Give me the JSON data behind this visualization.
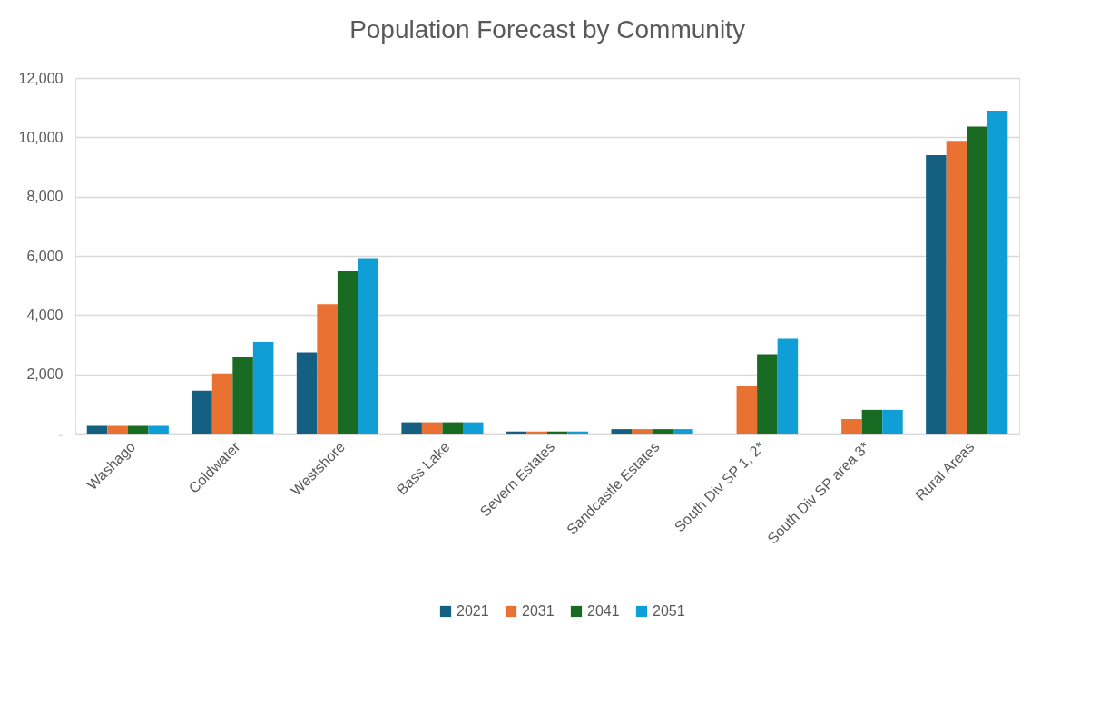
{
  "chart_data": {
    "type": "bar",
    "title": "Population Forecast by Community",
    "categories": [
      "Washago",
      "Coldwater",
      "Westshore",
      "Bass Lake",
      "Severn Estates",
      "Sandcastle Estates",
      "South Div SP 1, 2*",
      "South Div SP area 3*",
      "Rural Areas"
    ],
    "series": [
      {
        "name": "2021",
        "color": "#156082",
        "values": [
          260,
          1450,
          2740,
          380,
          70,
          150,
          null,
          null,
          9400
        ]
      },
      {
        "name": "2031",
        "color": "#e97132",
        "values": [
          260,
          2030,
          4370,
          380,
          70,
          150,
          1590,
          490,
          9880
        ]
      },
      {
        "name": "2041",
        "color": "#196b24",
        "values": [
          260,
          2570,
          5480,
          380,
          70,
          150,
          2680,
          800,
          10360
        ]
      },
      {
        "name": "2051",
        "color": "#0f9ed5",
        "values": [
          260,
          3090,
          5920,
          380,
          70,
          150,
          3200,
          800,
          10900
        ]
      }
    ],
    "ylim": [
      0,
      12000
    ],
    "yticks": [
      {
        "value": 0,
        "label": "-"
      },
      {
        "value": 2000,
        "label": "2,000"
      },
      {
        "value": 4000,
        "label": "4,000"
      },
      {
        "value": 6000,
        "label": "6,000"
      },
      {
        "value": 8000,
        "label": "8,000"
      },
      {
        "value": 10000,
        "label": "10,000"
      },
      {
        "value": 12000,
        "label": "12,000"
      }
    ],
    "grid": "y",
    "legend": "bottom"
  }
}
